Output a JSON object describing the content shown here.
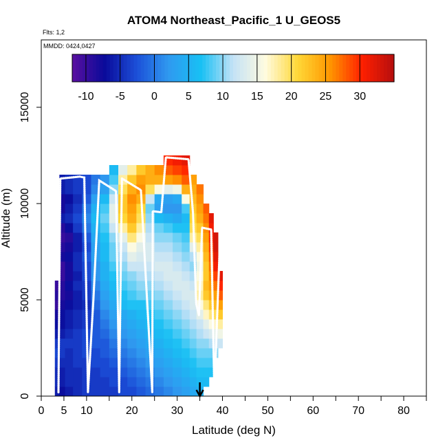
{
  "chart_data": {
    "type": "heatmap",
    "title": "ATOM4 Northeast_Pacific_1 U_GEOS5",
    "annotations": {
      "flights": "Flts: 1,2",
      "dates": "MMDD: 0424,0427"
    },
    "xlabel": "Latitude (deg N)",
    "ylabel": "Altitude (m)",
    "xlim": [
      0,
      85
    ],
    "ylim": [
      0,
      18500
    ],
    "x_ticks": [
      0,
      5,
      10,
      20,
      30,
      40,
      50,
      60,
      70,
      80
    ],
    "y_ticks": [
      0,
      5000,
      10000,
      15000
    ],
    "colorbar": {
      "min": -12,
      "max": 35,
      "ticks": [
        -10,
        -5,
        0,
        5,
        10,
        15,
        20,
        25,
        30
      ],
      "colors": [
        "#5a10a0",
        "#0a0a9a",
        "#1c4fd8",
        "#2f9af0",
        "#18c0f4",
        "#c4e2f6",
        "#fffbe0",
        "#ffd838",
        "#ff9800",
        "#ff2000",
        "#b50e0e"
      ]
    },
    "columns": [
      {
        "lat": 3.5,
        "bottom": 0,
        "top": 6000,
        "values": [
          -6,
          -5,
          -5,
          -4,
          -3,
          -4,
          -6,
          -7,
          -8,
          -10,
          -9,
          -10
        ]
      },
      {
        "lat": 4.5,
        "bottom": 0,
        "top": 11500,
        "values": [
          -7,
          -6,
          -6,
          -5,
          -4,
          -4,
          -6,
          -7,
          -7,
          -8,
          -9,
          -9,
          -10,
          -10,
          -8,
          -9,
          -10,
          -9,
          -6,
          -8,
          -8,
          -6,
          -6
        ]
      },
      {
        "lat": 6,
        "bottom": 0,
        "top": 11500,
        "values": [
          -6,
          -5,
          -5,
          -5,
          -5,
          -4,
          -5,
          -6,
          -6,
          -7,
          -8,
          -7,
          -8,
          -8,
          -7,
          -8,
          -9,
          -7,
          -5,
          -6,
          -7,
          -5,
          -5
        ]
      },
      {
        "lat": 8,
        "bottom": 0,
        "top": 11500,
        "values": [
          -5,
          -5,
          -5,
          -4,
          -4,
          -4,
          -4,
          -5,
          -5,
          -6,
          -6,
          -5,
          -6,
          -5,
          -5,
          -6,
          -6,
          -4,
          -3,
          -4,
          -5,
          -4,
          -4
        ]
      },
      {
        "lat": 10,
        "bottom": 0,
        "top": 11500,
        "values": [
          -4,
          -4,
          -4,
          -4,
          -3,
          -3,
          -3,
          -4,
          -4,
          -5,
          -4,
          -4,
          -3,
          -3,
          -2,
          -3,
          -2,
          0,
          1,
          0,
          -2,
          -3,
          -3
        ]
      },
      {
        "lat": 12,
        "bottom": 0,
        "top": 11500,
        "values": [
          -4,
          -4,
          -4,
          -3,
          -3,
          -2,
          -2,
          -2,
          -2,
          -1,
          0,
          1,
          2,
          2,
          3,
          3,
          4,
          5,
          6,
          5,
          3,
          1,
          0
        ]
      },
      {
        "lat": 14,
        "bottom": 0,
        "top": 11500,
        "values": [
          -4,
          -4,
          -3,
          -3,
          -2,
          -2,
          -1,
          0,
          1,
          2,
          3,
          4,
          5,
          5,
          6,
          6,
          7,
          8,
          9,
          8,
          6,
          3,
          2
        ]
      },
      {
        "lat": 16,
        "bottom": 0,
        "top": 12000,
        "values": [
          -4,
          -3,
          -3,
          -2,
          -1,
          0,
          1,
          2,
          3,
          4,
          5,
          6,
          7,
          8,
          9,
          9,
          10,
          12,
          14,
          14,
          12,
          10,
          8,
          6
        ]
      },
      {
        "lat": 18,
        "bottom": 0,
        "top": 12000,
        "values": [
          -3,
          -3,
          -2,
          -1,
          0,
          1,
          2,
          3,
          4,
          6,
          7,
          8,
          9,
          10,
          11,
          12,
          14,
          18,
          21,
          22,
          22,
          20,
          18,
          14
        ]
      },
      {
        "lat": 20,
        "bottom": 0,
        "top": 12000,
        "values": [
          -3,
          -2,
          -1,
          0,
          1,
          2,
          3,
          4,
          5,
          7,
          8,
          9,
          10,
          12,
          14,
          16,
          19,
          22,
          24,
          25,
          26,
          24,
          22,
          18
        ]
      },
      {
        "lat": 22,
        "bottom": 0,
        "top": 12000,
        "values": [
          -2,
          -1,
          0,
          1,
          2,
          3,
          4,
          5,
          6,
          7,
          9,
          10,
          11,
          12,
          13,
          14,
          16,
          18,
          20,
          21,
          24,
          26,
          25,
          22
        ]
      },
      {
        "lat": 24,
        "bottom": 0,
        "top": 12000,
        "values": [
          -1,
          0,
          1,
          2,
          3,
          4,
          5,
          6,
          7,
          8,
          9,
          10,
          11,
          12,
          13,
          13,
          12,
          11,
          10,
          9,
          12,
          20,
          24,
          24
        ]
      },
      {
        "lat": 26,
        "bottom": 0,
        "top": 12000,
        "values": [
          0,
          1,
          2,
          3,
          4,
          5,
          6,
          7,
          8,
          9,
          10,
          11,
          12,
          13,
          12,
          11,
          10,
          9,
          6,
          3,
          4,
          16,
          24,
          26
        ]
      },
      {
        "lat": 28,
        "bottom": 0,
        "top": 12500,
        "values": [
          1,
          2,
          3,
          4,
          5,
          6,
          7,
          8,
          9,
          10,
          11,
          12,
          13,
          13,
          12,
          11,
          10,
          8,
          5,
          2,
          3,
          14,
          25,
          28,
          30
        ]
      },
      {
        "lat": 30,
        "bottom": 0,
        "top": 12500,
        "values": [
          2,
          3,
          4,
          5,
          6,
          7,
          8,
          9,
          10,
          11,
          12,
          13,
          13,
          12,
          11,
          10,
          9,
          7,
          4,
          2,
          4,
          15,
          26,
          29,
          31
        ]
      },
      {
        "lat": 32,
        "bottom": 0,
        "top": 12500,
        "values": [
          3,
          4,
          5,
          6,
          7,
          8,
          9,
          10,
          11,
          12,
          13,
          13,
          12,
          11,
          10,
          9,
          8,
          7,
          6,
          8,
          16,
          24,
          28,
          30,
          32
        ]
      },
      {
        "lat": 33.5,
        "bottom": 0,
        "top": 11500,
        "values": [
          4,
          5,
          6,
          7,
          8,
          9,
          10,
          11,
          12,
          13,
          13,
          12,
          11,
          10,
          11,
          14,
          18,
          20,
          21,
          22,
          23,
          24,
          25
        ]
      },
      {
        "lat": 35,
        "bottom": 0,
        "top": 11000,
        "values": [
          5,
          6,
          7,
          8,
          9,
          10,
          11,
          12,
          14,
          16,
          18,
          17,
          16,
          15,
          16,
          18,
          20,
          22,
          24,
          25,
          26,
          27
        ]
      },
      {
        "lat": 36.5,
        "bottom": 500,
        "top": 10000,
        "values": [
          6,
          7,
          8,
          9,
          10,
          12,
          14,
          17,
          19,
          22,
          23,
          22,
          22,
          23,
          24,
          25,
          26,
          27,
          28
        ]
      },
      {
        "lat": 37.5,
        "bottom": 1000,
        "top": 9500,
        "values": [
          7,
          8,
          9,
          11,
          13,
          16,
          19,
          22,
          24,
          25,
          26,
          27,
          28,
          29,
          30,
          31,
          32
        ]
      },
      {
        "lat": 38.5,
        "bottom": 2000,
        "top": 8500,
        "values": [
          10,
          12,
          14,
          17,
          20,
          23,
          25,
          27,
          29,
          31,
          32,
          33,
          33
        ]
      },
      {
        "lat": 39.5,
        "bottom": 2500,
        "top": 6500,
        "values": [
          12,
          15,
          18,
          22,
          25,
          28,
          30,
          32
        ]
      }
    ],
    "flight_track": [
      [
        3.8,
        200
      ],
      [
        4.2,
        11300
      ],
      [
        6.5,
        11350
      ],
      [
        8.5,
        11400
      ],
      [
        9.5,
        11350
      ],
      [
        10.3,
        200
      ],
      [
        11.5,
        5000
      ],
      [
        12.8,
        11200
      ],
      [
        16.5,
        10650
      ],
      [
        17.2,
        200
      ],
      [
        17.8,
        11300
      ],
      [
        22.0,
        10700
      ],
      [
        24.5,
        200
      ],
      [
        24.6,
        9600
      ],
      [
        26.5,
        9550
      ],
      [
        27.5,
        12400
      ],
      [
        32.5,
        12300
      ],
      [
        33.5,
        9500
      ],
      [
        34.2,
        4800
      ],
      [
        34.8,
        4200
      ],
      [
        35.5,
        8750
      ],
      [
        37.5,
        8650
      ],
      [
        38.2,
        200
      ],
      [
        39.5,
        8400
      ]
    ],
    "arrow_lat": 35
  }
}
